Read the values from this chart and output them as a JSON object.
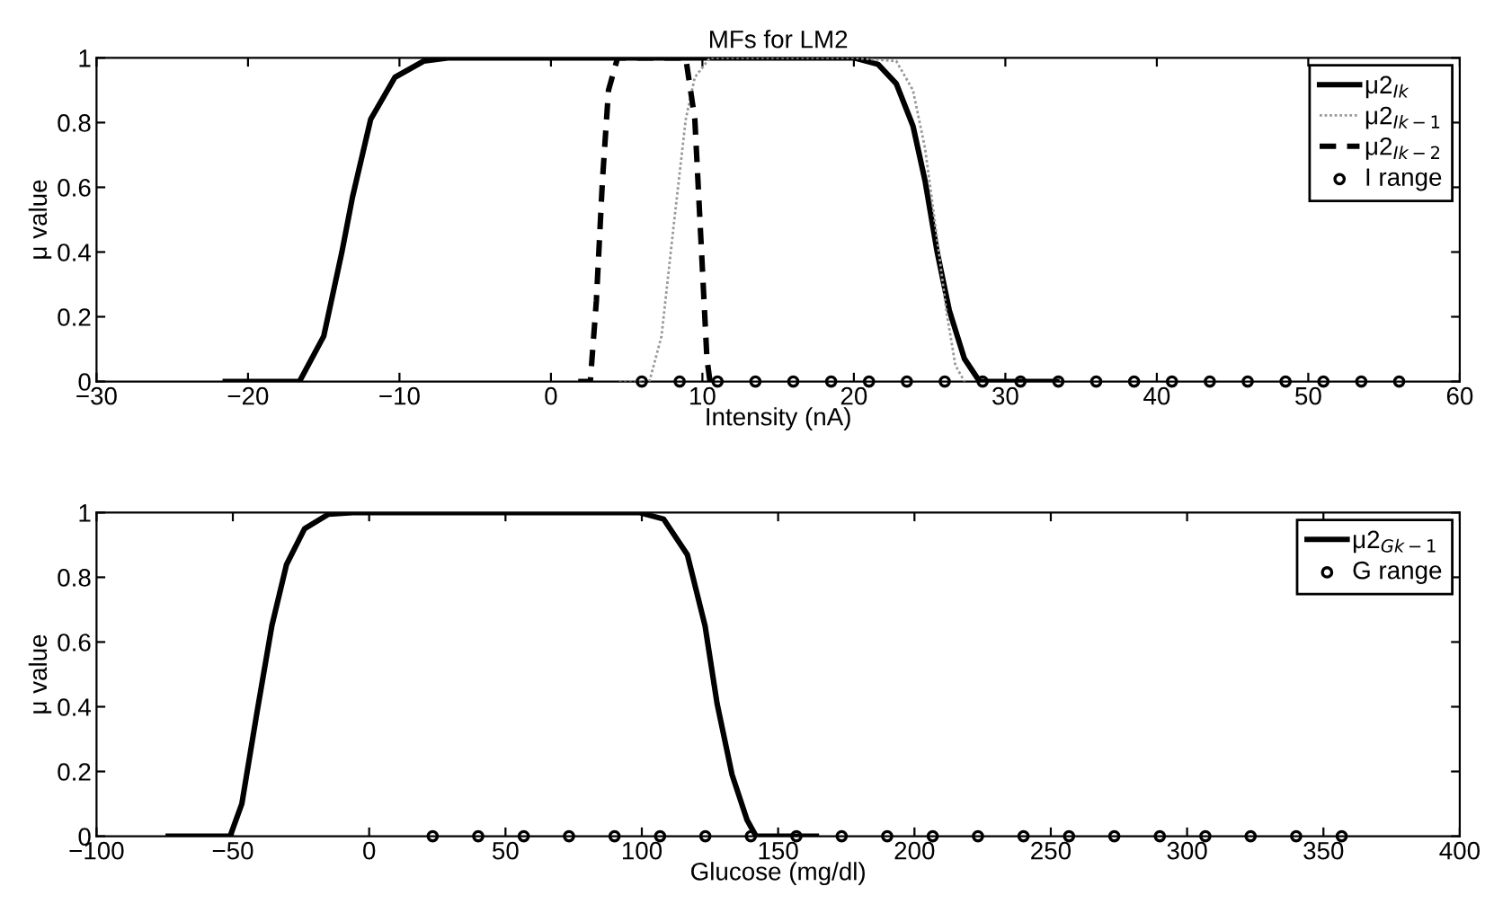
{
  "chart_data": [
    {
      "type": "line",
      "title": "MFs for LM2",
      "xlabel": "Intensity (nA)",
      "ylabel": "μ value",
      "xlim": [
        -30,
        60
      ],
      "xticks": [
        -30,
        -20,
        -10,
        0,
        10,
        20,
        30,
        40,
        50,
        60
      ],
      "ylim": [
        0,
        1
      ],
      "yticks": [
        0,
        0.2,
        0.4,
        0.6,
        0.8,
        1
      ],
      "grid": false,
      "legend": "top right",
      "series": [
        {
          "name": "μ2$_{Ik}$",
          "color": "#000000",
          "line_style": "solid",
          "x": [
            -21.5,
            -16.6,
            -15.0,
            -13.8,
            -13.1,
            -11.9,
            -10.3,
            -8.4,
            -6.8,
            20,
            21.6,
            22.8,
            23.9,
            24.7,
            25.5,
            26.3,
            27.3,
            28.3,
            33.4
          ],
          "values": [
            0,
            0,
            0.14,
            0.4,
            0.57,
            0.81,
            0.94,
            0.99,
            1,
            1,
            0.98,
            0.92,
            0.79,
            0.62,
            0.4,
            0.22,
            0.07,
            0,
            0
          ]
        },
        {
          "name": "μ2$_{Ik−1}$",
          "color": "#999999",
          "line_style": "dotted",
          "x": [
            4.5,
            6.5,
            7.3,
            8.1,
            8.9,
            9.5,
            10.5,
            20,
            22.8,
            23.9,
            24.7,
            25.5,
            26.1,
            26.7,
            27.3,
            27.5
          ],
          "values": [
            0,
            0,
            0.14,
            0.48,
            0.81,
            0.94,
            1,
            1,
            0.99,
            0.9,
            0.72,
            0.44,
            0.22,
            0.05,
            0,
            0
          ]
        },
        {
          "name": "μ2$_{Ik−2}$",
          "color": "#000000",
          "line_style": "dashed",
          "x": [
            1.8,
            2.6,
            3.0,
            3.4,
            3.8,
            4.4,
            8.9,
            9.5,
            9.9,
            10.3,
            10.5,
            11
          ],
          "values": [
            0,
            0,
            0.25,
            0.62,
            0.9,
            1,
            1,
            0.81,
            0.44,
            0.07,
            0,
            0
          ]
        },
        {
          "name": "I range",
          "type": "scatter",
          "marker": "circle",
          "color": "#000000",
          "x": [
            6,
            8.5,
            11,
            13.5,
            16,
            18.5,
            21,
            23.5,
            26,
            28.5,
            31,
            33.5,
            36,
            38.5,
            41,
            43.5,
            46,
            48.5,
            51,
            53.5,
            56
          ],
          "values": [
            0,
            0,
            0,
            0,
            0,
            0,
            0,
            0,
            0,
            0,
            0,
            0,
            0,
            0,
            0,
            0,
            0,
            0,
            0,
            0,
            0
          ]
        }
      ]
    },
    {
      "type": "line",
      "xlabel": "Glucose (mg/dl)",
      "ylabel": "μ value",
      "xlim": [
        -100,
        400
      ],
      "xticks": [
        -100,
        -50,
        0,
        50,
        100,
        150,
        200,
        250,
        300,
        350,
        400
      ],
      "ylim": [
        0,
        1
      ],
      "yticks": [
        0,
        0.2,
        0.4,
        0.6,
        0.8,
        1
      ],
      "grid": false,
      "legend": "top right",
      "series": [
        {
          "name": "μ2$_{Gk−1}$",
          "color": "#000000",
          "line_style": "solid",
          "x": [
            -73.7,
            -51,
            -46.7,
            -41.2,
            -35.7,
            -30.3,
            -23.7,
            -14.9,
            -6,
            99,
            108,
            116.7,
            123.2,
            127.6,
            133.1,
            138.6,
            141.9,
            164
          ],
          "values": [
            0,
            0,
            0.1,
            0.38,
            0.65,
            0.84,
            0.95,
            0.995,
            1,
            1,
            0.98,
            0.87,
            0.65,
            0.41,
            0.19,
            0.05,
            0,
            0
          ]
        },
        {
          "name": "G range",
          "type": "scatter",
          "marker": "circle",
          "color": "#000000",
          "x": [
            23.3,
            40,
            56.7,
            73.3,
            90,
            106.7,
            123.3,
            140,
            156.7,
            173.3,
            190,
            206.7,
            223.3,
            240,
            256.7,
            273.3,
            290,
            306.7,
            323.3,
            340,
            356.7
          ],
          "values": [
            0,
            0,
            0,
            0,
            0,
            0,
            0,
            0,
            0,
            0,
            0,
            0,
            0,
            0,
            0,
            0,
            0,
            0,
            0,
            0,
            0
          ]
        }
      ]
    }
  ]
}
